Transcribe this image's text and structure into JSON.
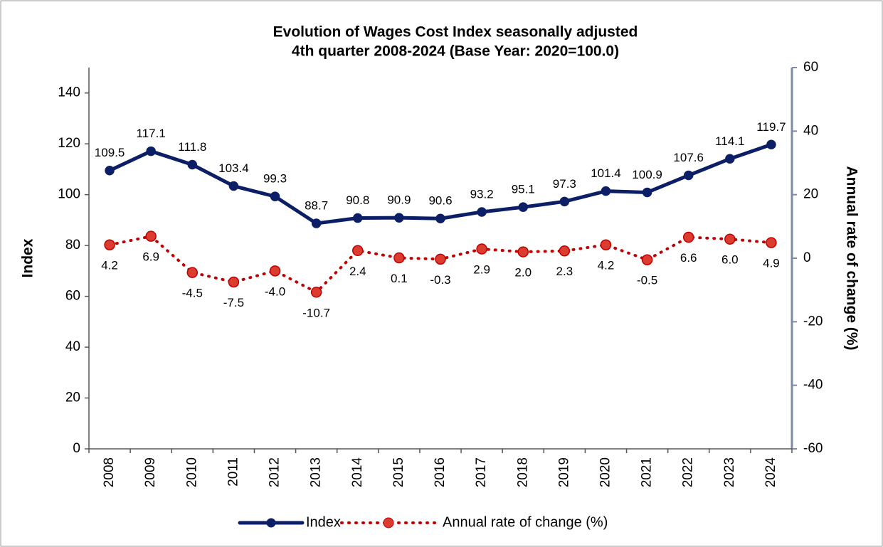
{
  "chart_data": {
    "type": "line",
    "title": [
      "Evolution of Wages Cost Index seasonally adjusted",
      "4th quarter 2008-2024 (Base Year: 2020=100.0)"
    ],
    "categories": [
      "2008",
      "2009",
      "2010",
      "2011",
      "2012",
      "2013",
      "2014",
      "2015",
      "2016",
      "2017",
      "2018",
      "2019",
      "2020",
      "2021",
      "2022",
      "2023",
      "2024"
    ],
    "y_label": "Index",
    "y2_label": "Annual rate of change (%)",
    "ylim": [
      0,
      150
    ],
    "yticks": [
      0,
      20,
      40,
      60,
      80,
      100,
      120,
      140
    ],
    "y2lim": [
      -60,
      60
    ],
    "y2ticks": [
      -60,
      -40,
      -20,
      0,
      20,
      40,
      60
    ],
    "series": [
      {
        "name": "Index",
        "color": "#0c1f66",
        "style": "solid",
        "values": [
          109.5,
          117.1,
          111.8,
          103.4,
          99.3,
          88.7,
          90.8,
          90.9,
          90.6,
          93.2,
          95.1,
          97.3,
          101.4,
          100.9,
          107.6,
          114.1,
          119.7
        ]
      },
      {
        "name": "Annual rate of change (%)",
        "color": "#c00000",
        "style": "dotted",
        "axis": "y2",
        "values": [
          4.2,
          6.9,
          -4.5,
          -7.5,
          -4.0,
          -10.7,
          2.4,
          0.1,
          -0.3,
          2.9,
          2.0,
          2.3,
          4.2,
          -0.5,
          6.6,
          6.0,
          4.9
        ],
        "value_labels": [
          "4.2",
          "6.9",
          "-4.5",
          "-7.5",
          "-4.0",
          "-10.7",
          "2.4",
          "0.1",
          "-0.3",
          "2.9",
          "2.0",
          "2.3",
          "4.2",
          "-0.5",
          "6.6",
          "6.0",
          "4.9"
        ]
      }
    ]
  }
}
